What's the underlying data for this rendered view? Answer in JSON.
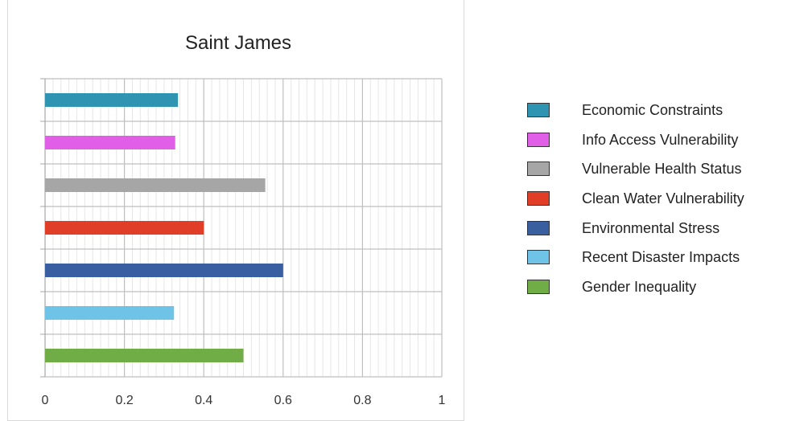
{
  "chart_data": {
    "type": "bar",
    "orientation": "horizontal",
    "title": "Saint James",
    "xlim": [
      0,
      1
    ],
    "x_ticks": [
      "0",
      "0.2",
      "0.4",
      "0.6",
      "0.8",
      "1"
    ],
    "grid": "major and minor vertical, major horizontal",
    "legend_position": "right",
    "categories": [
      "Economic Constraints",
      "Info Access Vulnerability",
      "Vulnerable Health Status",
      "Clean Water Vulnerability",
      "Environmental Stress",
      "Recent Disaster Impacts",
      "Gender Inequality"
    ],
    "values": [
      0.335,
      0.328,
      0.555,
      0.4,
      0.6,
      0.325,
      0.5
    ],
    "colors": [
      "#2e94b2",
      "#e05fe6",
      "#a6a6a6",
      "#e03e26",
      "#3a5fa0",
      "#6ec3e6",
      "#70ad47"
    ]
  }
}
